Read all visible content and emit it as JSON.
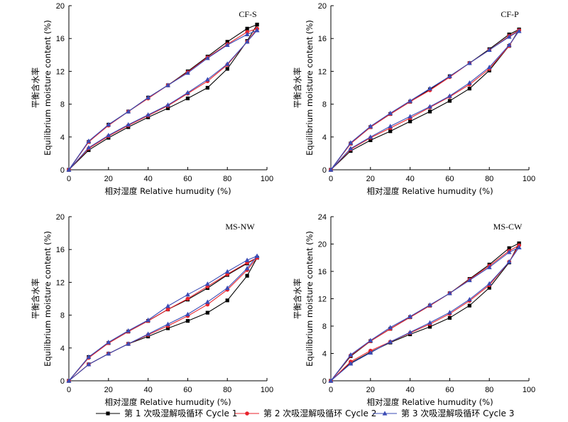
{
  "legend": [
    {
      "label": "第 1 次吸湿解吸循环 Cycle 1",
      "color": "#000000",
      "marker": "square"
    },
    {
      "label": "第 2 次吸湿解吸循环 Cycle 2",
      "color": "#e8222b",
      "marker": "circle"
    },
    {
      "label": "第 3 次吸湿解吸循环 Cycle 3",
      "color": "#3a4bb5",
      "marker": "triangle"
    }
  ],
  "chart_data": [
    {
      "type": "line",
      "title": "CF-S",
      "xlabel": "相对湿度 Relative humudity (%)",
      "ylabel_cn": "平衡含水率",
      "ylabel_en": "Equilibrium moisture content (%)",
      "xlim": [
        0,
        100
      ],
      "ylim": [
        0,
        20
      ],
      "xticks": [
        0,
        20,
        40,
        60,
        80,
        100
      ],
      "yticks": [
        0,
        4,
        8,
        12,
        16,
        20
      ],
      "x": [
        0,
        10,
        20,
        30,
        40,
        50,
        60,
        70,
        80,
        90,
        95
      ],
      "series": [
        {
          "name": "Cycle 1",
          "adsorption": [
            0,
            2.4,
            3.9,
            5.2,
            6.4,
            7.5,
            8.7,
            10.0,
            12.3,
            15.7,
            17.7
          ],
          "desorption": [
            0,
            3.4,
            5.5,
            7.1,
            8.8,
            10.3,
            12.0,
            13.8,
            15.6,
            17.2,
            17.7
          ]
        },
        {
          "name": "Cycle 2",
          "adsorption": [
            0,
            2.6,
            4.1,
            5.4,
            6.6,
            7.8,
            9.3,
            10.8,
            12.8,
            15.6,
            17.2
          ],
          "desorption": [
            0,
            3.4,
            5.4,
            7.1,
            8.7,
            10.3,
            11.9,
            13.7,
            15.3,
            16.8,
            17.2
          ]
        },
        {
          "name": "Cycle 3",
          "adsorption": [
            0,
            2.7,
            4.2,
            5.5,
            6.7,
            7.9,
            9.4,
            11.0,
            12.9,
            15.6,
            17.0
          ],
          "desorption": [
            0,
            3.5,
            5.5,
            7.1,
            8.8,
            10.3,
            11.8,
            13.6,
            15.2,
            16.5,
            17.0
          ]
        }
      ]
    },
    {
      "type": "line",
      "title": "CF-P",
      "xlabel": "相对湿度 Relative humudity (%)",
      "ylabel_cn": "平衡含水率",
      "ylabel_en": "Equilibrium moisture content (%)",
      "xlim": [
        0,
        100
      ],
      "ylim": [
        0,
        20
      ],
      "xticks": [
        0,
        20,
        40,
        60,
        80,
        100
      ],
      "yticks": [
        0,
        4,
        8,
        12,
        16,
        20
      ],
      "x": [
        0,
        10,
        20,
        30,
        40,
        50,
        60,
        70,
        80,
        90,
        95
      ],
      "series": [
        {
          "name": "Cycle 1",
          "adsorption": [
            0,
            2.3,
            3.6,
            4.7,
            5.9,
            7.1,
            8.4,
            9.9,
            12.1,
            15.1,
            17.1
          ],
          "desorption": [
            0,
            3.2,
            5.2,
            6.8,
            8.3,
            9.8,
            11.4,
            13.0,
            14.7,
            16.5,
            17.1
          ]
        },
        {
          "name": "Cycle 2",
          "adsorption": [
            0,
            2.5,
            3.9,
            5.1,
            6.3,
            7.6,
            8.9,
            10.4,
            12.3,
            15.1,
            17.0
          ],
          "desorption": [
            0,
            3.2,
            5.2,
            6.8,
            8.3,
            9.7,
            11.3,
            13.0,
            14.6,
            16.3,
            17.0
          ]
        },
        {
          "name": "Cycle 3",
          "adsorption": [
            0,
            2.6,
            4.0,
            5.3,
            6.5,
            7.7,
            9.0,
            10.6,
            12.5,
            15.2,
            16.9
          ],
          "desorption": [
            0,
            3.3,
            5.3,
            6.9,
            8.4,
            9.9,
            11.4,
            13.0,
            14.6,
            16.2,
            16.9
          ]
        }
      ]
    },
    {
      "type": "line",
      "title": "MS-NW",
      "xlabel": "相对湿度 Relative humudity (%)",
      "ylabel_cn": "平衡含水率",
      "ylabel_en": "Equilibrium moisture content (%)",
      "xlim": [
        0,
        100
      ],
      "ylim": [
        0,
        20
      ],
      "xticks": [
        0,
        20,
        40,
        60,
        80,
        100
      ],
      "yticks": [
        0,
        4,
        8,
        12,
        16,
        20
      ],
      "x": [
        0,
        10,
        20,
        30,
        40,
        50,
        60,
        70,
        80,
        90,
        95
      ],
      "series": [
        {
          "name": "Cycle 1",
          "adsorption": [
            0,
            2.0,
            3.3,
            4.5,
            5.4,
            6.4,
            7.3,
            8.3,
            9.8,
            12.8,
            15.0
          ],
          "desorption": [
            0,
            2.9,
            4.6,
            6.0,
            7.3,
            8.7,
            9.9,
            11.3,
            12.9,
            14.3,
            15.0
          ]
        },
        {
          "name": "Cycle 2",
          "adsorption": [
            0,
            2.0,
            3.3,
            4.5,
            5.6,
            6.7,
            7.9,
            9.3,
            11.1,
            13.5,
            15.0
          ],
          "desorption": [
            0,
            2.8,
            4.6,
            6.0,
            7.3,
            8.7,
            10.0,
            11.5,
            13.0,
            14.4,
            15.0
          ]
        },
        {
          "name": "Cycle 3",
          "adsorption": [
            0,
            2.0,
            3.3,
            4.5,
            5.7,
            6.9,
            8.1,
            9.6,
            11.3,
            13.7,
            15.2
          ],
          "desorption": [
            0,
            2.9,
            4.7,
            6.1,
            7.4,
            9.1,
            10.5,
            11.8,
            13.3,
            14.7,
            15.2
          ]
        }
      ]
    },
    {
      "type": "line",
      "title": "MS-CW",
      "xlabel": "相对湿度 Relative humudity (%)",
      "ylabel_cn": "平衡含水率",
      "ylabel_en": "Equilibrium moisture content (%)",
      "xlim": [
        0,
        100
      ],
      "ylim": [
        0,
        24
      ],
      "xticks": [
        0,
        20,
        40,
        60,
        80,
        100
      ],
      "yticks": [
        0,
        4,
        8,
        12,
        16,
        20,
        24
      ],
      "x": [
        0,
        10,
        20,
        30,
        40,
        50,
        60,
        70,
        80,
        90,
        95
      ],
      "series": [
        {
          "name": "Cycle 1",
          "adsorption": [
            0,
            2.6,
            4.2,
            5.6,
            6.8,
            7.9,
            9.2,
            11.0,
            13.6,
            17.3,
            20.1
          ],
          "desorption": [
            0,
            3.6,
            5.8,
            7.6,
            9.3,
            11.0,
            12.8,
            14.9,
            17.0,
            19.4,
            20.1
          ]
        },
        {
          "name": "Cycle 2",
          "adsorption": [
            0,
            2.8,
            4.4,
            5.7,
            7.0,
            8.3,
            9.8,
            11.7,
            14.0,
            17.4,
            19.8
          ],
          "desorption": [
            0,
            3.7,
            5.8,
            7.6,
            9.3,
            11.0,
            12.8,
            14.8,
            16.8,
            19.0,
            19.8
          ]
        },
        {
          "name": "Cycle 3",
          "adsorption": [
            0,
            2.5,
            4.1,
            5.7,
            7.1,
            8.5,
            10.0,
            11.9,
            14.2,
            17.4,
            19.5
          ],
          "desorption": [
            0,
            3.8,
            5.9,
            7.8,
            9.4,
            11.1,
            12.8,
            14.7,
            16.6,
            18.8,
            19.5
          ]
        }
      ]
    }
  ]
}
